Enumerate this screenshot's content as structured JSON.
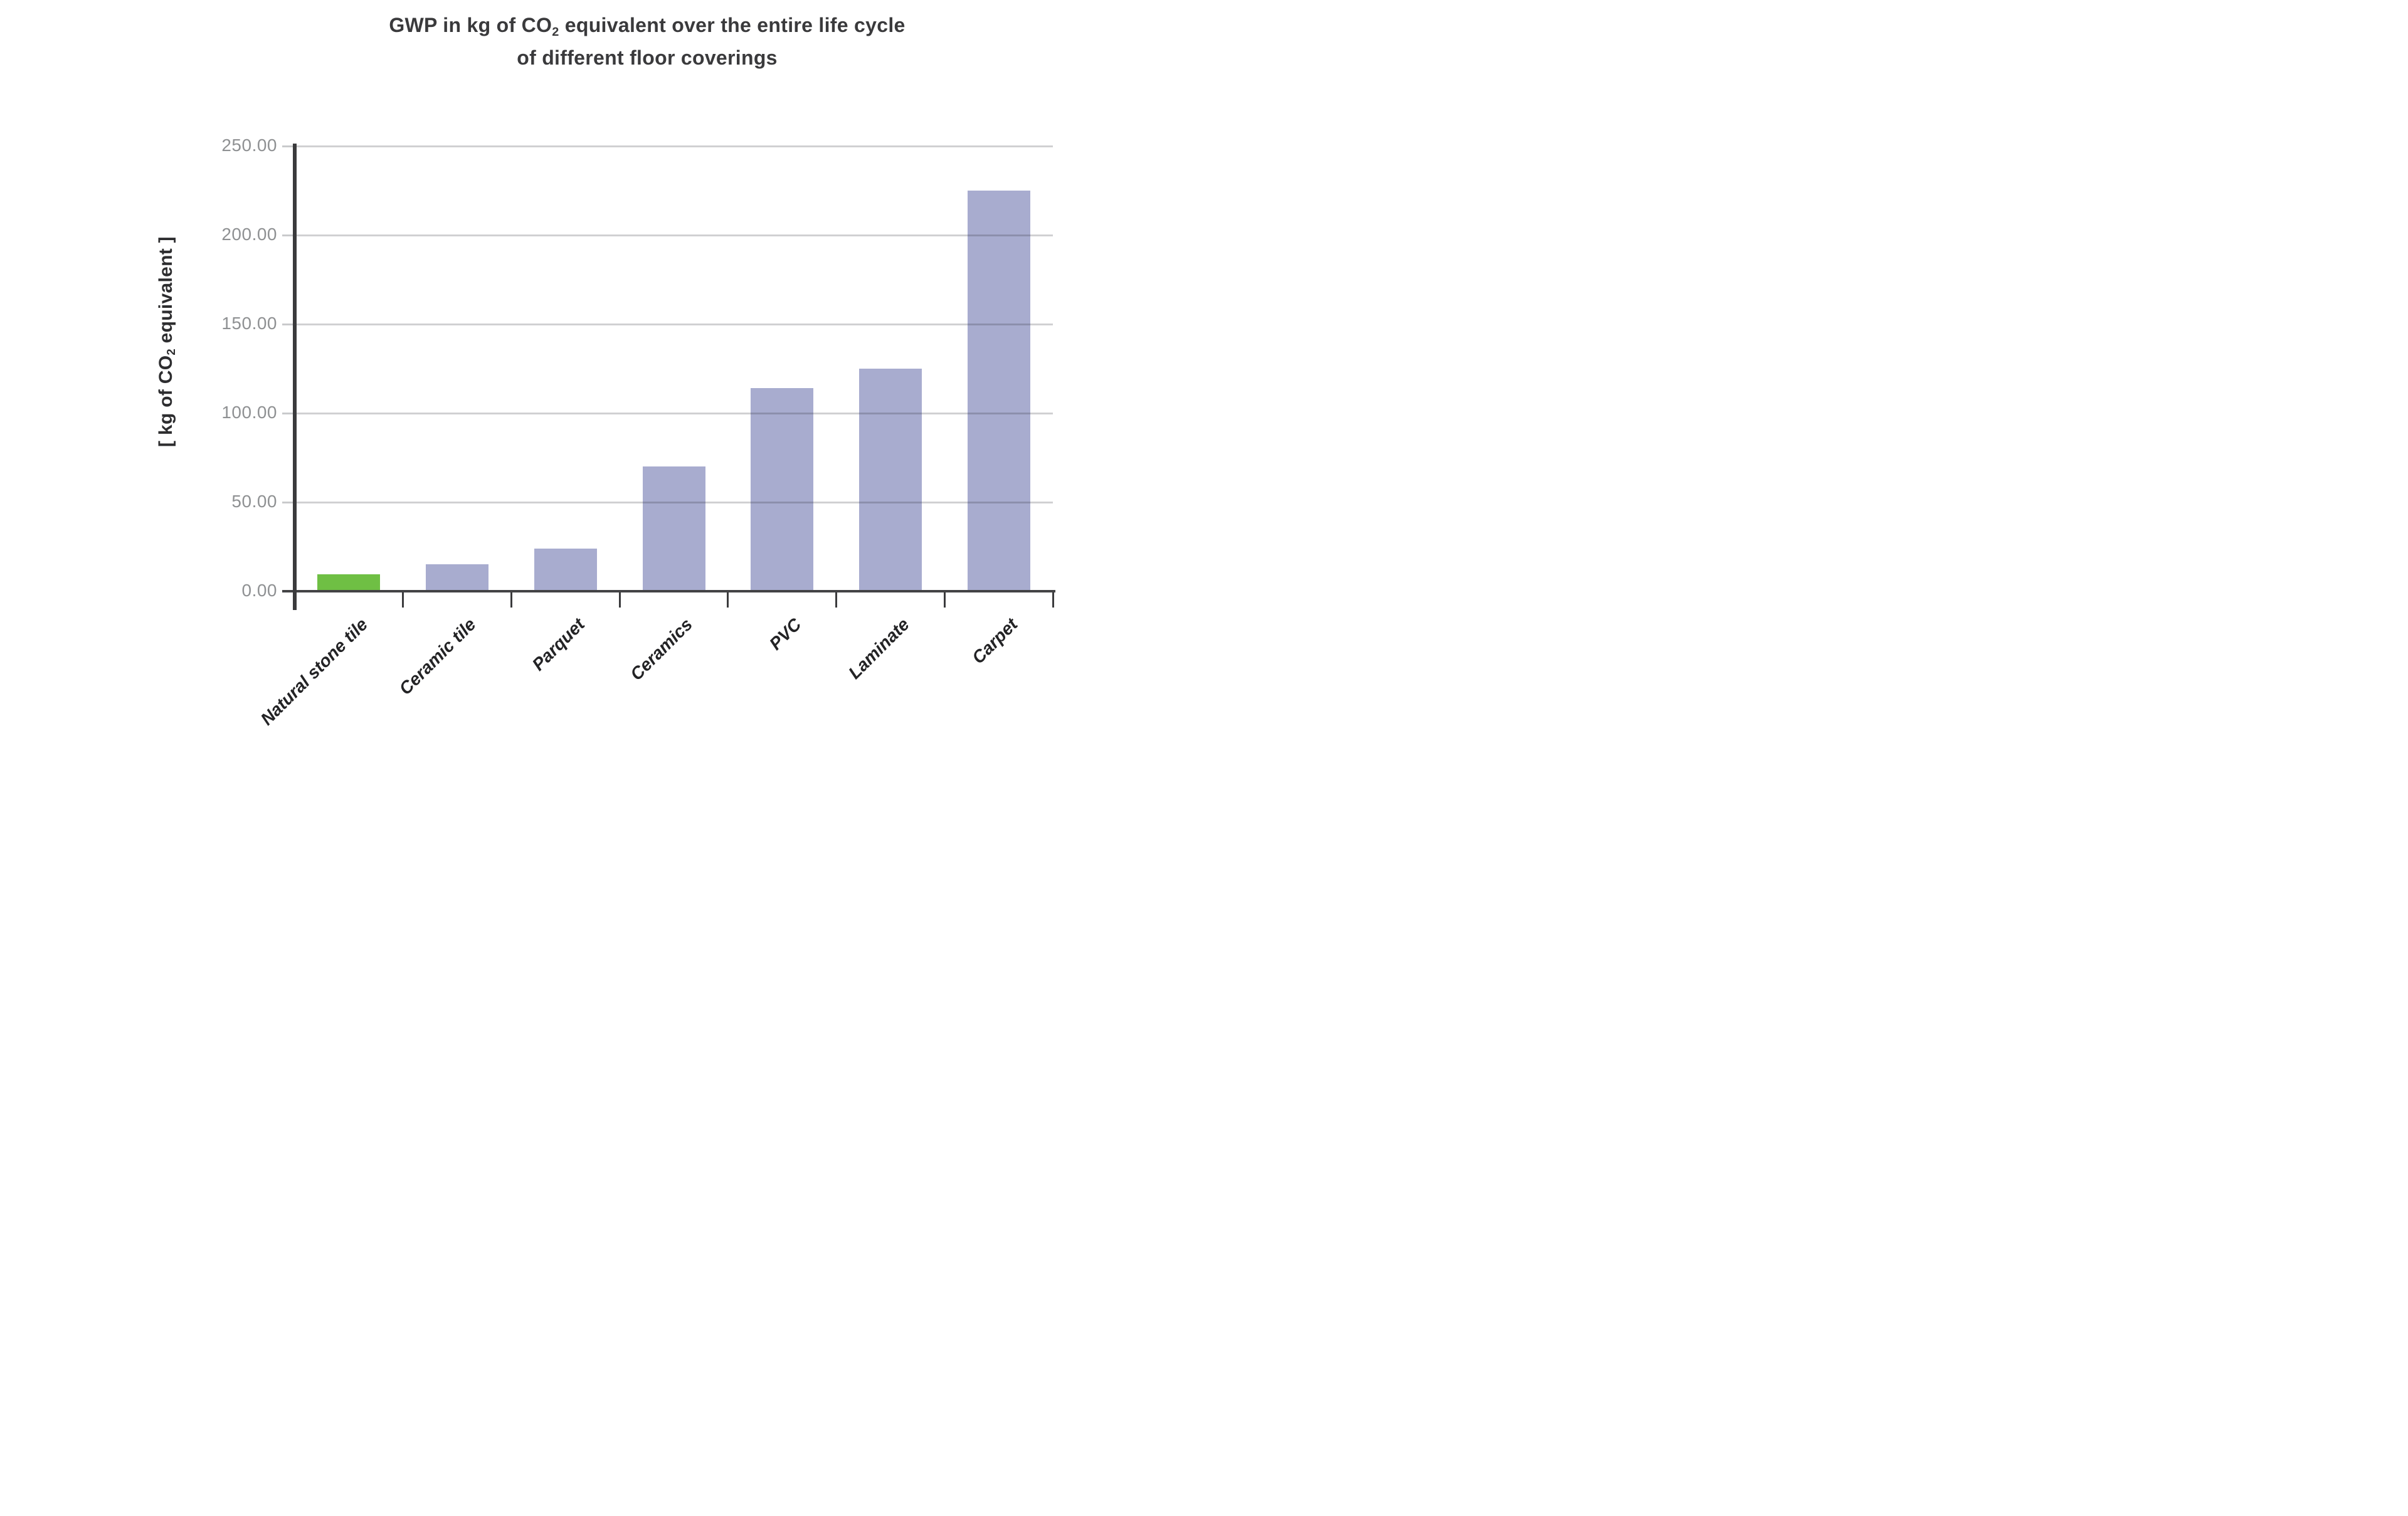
{
  "title": {
    "line1_prefix": "GWP in kg of CO",
    "line1_sub": "2",
    "line1_suffix": " equivalent over the entire life cycle",
    "line2": "of different floor coverings"
  },
  "y_axis": {
    "label_prefix": "[ kg of CO",
    "label_sub": "2",
    "label_suffix": " equivalent ]",
    "ticks": [
      "250.00",
      "200.00",
      "150.00",
      "100.00",
      "50.00",
      "0.00"
    ]
  },
  "chart_data": {
    "type": "bar",
    "title": "GWP in kg of CO2 equivalent over the entire life cycle of different floor coverings",
    "ylabel": "[ kg of CO2 equivalent ]",
    "xlabel": "",
    "categories": [
      "Natural stone tile",
      "Ceramic tile",
      "Parquet",
      "Ceramics",
      "PVC",
      "Laminate",
      "Carpet"
    ],
    "values": [
      9.5,
      15,
      24,
      70,
      114,
      125,
      225
    ],
    "ylim": [
      0,
      250
    ],
    "ytick_interval": 50,
    "grid": true,
    "legend": false,
    "highlight_index": 0,
    "highlight_note": "Natural stone tile bar is green; all other bars are periwinkle blue"
  },
  "colors": {
    "background": "#ffffff",
    "highlight_bar": "#6fbf44",
    "default_bar": "#a8accf",
    "grid_line": "#c9cacc",
    "axis_line": "#3b3b3d",
    "tick_label": "#8f9193",
    "title_text": "#3a3a3c",
    "category_label": "#232325"
  }
}
